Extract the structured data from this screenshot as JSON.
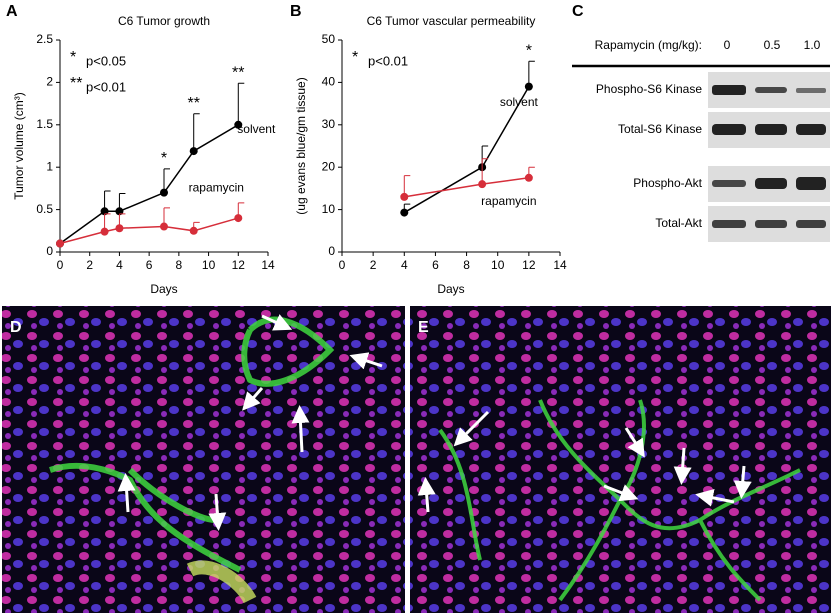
{
  "chart_data": [
    {
      "type": "line",
      "panel": "A",
      "title": "C6 Tumor growth",
      "xlabel": "Days",
      "ylabel": "Tumor volume (cm³)",
      "x": [
        0,
        3,
        4,
        7,
        9,
        12
      ],
      "series": [
        {
          "name": "solvent",
          "color": "#000000",
          "values": [
            0.1,
            0.48,
            0.48,
            0.7,
            1.19,
            1.5
          ],
          "errors": [
            null,
            0.24,
            0.21,
            0.28,
            0.44,
            0.49
          ]
        },
        {
          "name": "rapamycin",
          "color": "#d62e3a",
          "values": [
            0.1,
            0.24,
            0.28,
            0.3,
            0.25,
            0.4
          ],
          "errors": [
            null,
            0.21,
            0.17,
            0.22,
            0.1,
            0.18
          ]
        }
      ],
      "annotations": [
        {
          "x": 7,
          "text": "*"
        },
        {
          "x": 9,
          "text": "**"
        },
        {
          "x": 12,
          "text": "**"
        }
      ],
      "notes": [
        {
          "symbol": "*",
          "text": "p<0.05"
        },
        {
          "symbol": "**",
          "text": "p<0.01"
        }
      ],
      "xlim": [
        0,
        14
      ],
      "xticks": [
        0,
        2,
        4,
        6,
        8,
        10,
        12,
        14
      ],
      "ylim": [
        0,
        2.5
      ],
      "yticks": [
        0,
        0.5,
        1,
        1.5,
        2,
        2.5
      ]
    },
    {
      "type": "line",
      "panel": "B",
      "title": "C6 Tumor vascular permeability",
      "xlabel": "Days",
      "ylabel": "(ug evans blue/gm tissue)",
      "x": [
        4,
        9,
        12
      ],
      "series": [
        {
          "name": "solvent",
          "color": "#000000",
          "values": [
            9.3,
            20,
            39
          ],
          "errors": [
            2,
            5,
            6
          ]
        },
        {
          "name": "rapamycin",
          "color": "#d62e3a",
          "values": [
            13,
            16,
            17.5
          ],
          "errors": [
            5,
            6,
            2.5
          ]
        }
      ],
      "annotations": [
        {
          "x": 12,
          "text": "*"
        }
      ],
      "notes": [
        {
          "symbol": "*",
          "text": "p<0.01"
        }
      ],
      "xlim": [
        0,
        14
      ],
      "xticks": [
        0,
        2,
        4,
        6,
        8,
        10,
        12,
        14
      ],
      "ylim": [
        0,
        50
      ],
      "yticks": [
        0,
        10,
        20,
        30,
        40,
        50
      ]
    }
  ],
  "blot": {
    "panel": "C",
    "title": "Rapamycin (mg/kg):",
    "doses": [
      "0",
      "0.5",
      "1.0"
    ],
    "rows": [
      "Phospho-S6 Kinase",
      "Total-S6 Kinase",
      "Phospho-Akt",
      "Total-Akt"
    ]
  },
  "images": [
    {
      "panel": "D"
    },
    {
      "panel": "E"
    }
  ]
}
